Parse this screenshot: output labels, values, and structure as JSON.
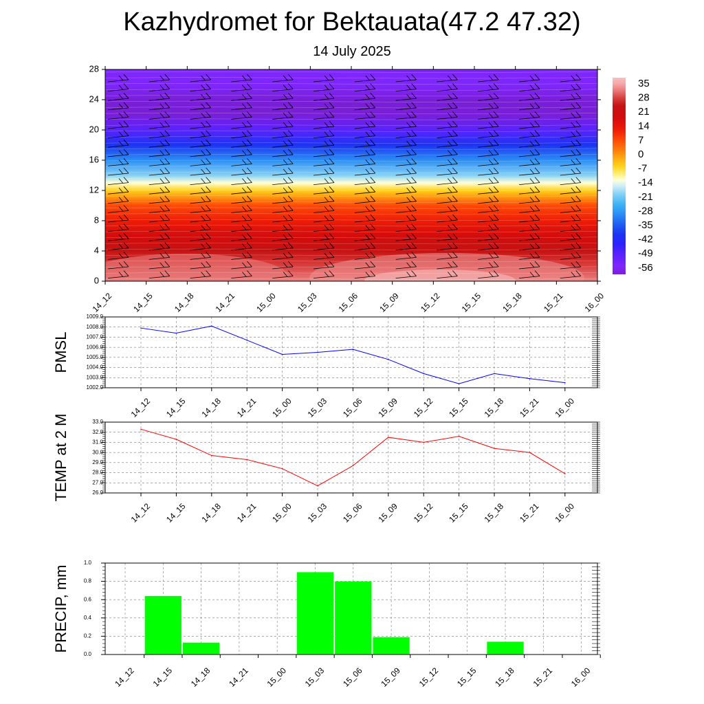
{
  "header": {
    "title": "Kazhydromet for Bektauata(47.2 47.32)",
    "subtitle": "14 July 2025"
  },
  "chart_data": [
    {
      "type": "heatmap",
      "xlabel": "",
      "ylabel": "",
      "x": [
        "14_12",
        "14_15",
        "14_18",
        "14_21",
        "15_00",
        "15_03",
        "15_06",
        "15_09",
        "15_12",
        "15_15",
        "15_18",
        "15_21",
        "16_00"
      ],
      "y_ticks": [
        0,
        4,
        8,
        12,
        16,
        20,
        24,
        28
      ],
      "ylim": [
        0,
        28
      ],
      "colorbar_labels": [
        "35",
        "28",
        "21",
        "14",
        "7",
        "0",
        "-7",
        "-14",
        "-21",
        "-28",
        "-35",
        "-42",
        "-49",
        "-56"
      ],
      "colorbar_range": [
        -60,
        38
      ],
      "vertical_temperature_profile": [
        {
          "y": 0,
          "value": 33
        },
        {
          "y": 2,
          "value": 30
        },
        {
          "y": 4,
          "value": 27
        },
        {
          "y": 6,
          "value": 22
        },
        {
          "y": 8,
          "value": 18
        },
        {
          "y": 10,
          "value": 8
        },
        {
          "y": 12,
          "value": -2
        },
        {
          "y": 13,
          "value": -10
        },
        {
          "y": 14,
          "value": -16
        },
        {
          "y": 16,
          "value": -28
        },
        {
          "y": 18,
          "value": -38
        },
        {
          "y": 20,
          "value": -48
        },
        {
          "y": 22,
          "value": -56
        },
        {
          "y": 24,
          "value": -58
        },
        {
          "y": 26,
          "value": -55
        },
        {
          "y": 28,
          "value": -52
        }
      ],
      "wind_barbs": "yes",
      "grid": false
    },
    {
      "type": "line",
      "ylabel": "PMSL",
      "xlabel": "",
      "categories": [
        "14_12",
        "14_15",
        "14_18",
        "14_21",
        "15_00",
        "15_03",
        "15_06",
        "15_09",
        "15_12",
        "15_15",
        "15_18",
        "15_21",
        "16_00"
      ],
      "values": [
        1007.9,
        1007.4,
        1008.1,
        1006.7,
        1005.3,
        1005.5,
        1005.8,
        1004.8,
        1003.4,
        1002.4,
        1003.4,
        1002.9,
        1002.5
      ],
      "y_ticks": [
        "1002.0",
        "1003.0",
        "1004.0",
        "1005.0",
        "1006.0",
        "1007.0",
        "1008.0",
        "1009.0"
      ],
      "ylim": [
        1002,
        1009
      ],
      "color": "#0000ff",
      "grid": true
    },
    {
      "type": "line",
      "ylabel": "TEMP at 2 M",
      "xlabel": "",
      "categories": [
        "14_12",
        "14_15",
        "14_18",
        "14_21",
        "15_00",
        "15_03",
        "15_06",
        "15_09",
        "15_12",
        "15_15",
        "15_18",
        "15_21",
        "16_00"
      ],
      "values": [
        32.3,
        31.3,
        29.7,
        29.3,
        28.4,
        26.7,
        28.7,
        31.5,
        31.0,
        31.6,
        30.4,
        30.0,
        27.9
      ],
      "y_ticks": [
        "26.0",
        "27.0",
        "28.0",
        "29.0",
        "30.0",
        "31.0",
        "32.0",
        "33.0"
      ],
      "ylim": [
        26,
        33
      ],
      "color": "#ff0000",
      "grid": true
    },
    {
      "type": "bar",
      "ylabel": "PRECIP, mm",
      "xlabel": "",
      "categories": [
        "14_12",
        "14_15",
        "14_18",
        "14_21",
        "15_00",
        "15_03",
        "15_06",
        "15_09",
        "15_12",
        "15_15",
        "15_18",
        "15_21",
        "16_00"
      ],
      "values": [
        0,
        0.64,
        0.13,
        0,
        0,
        0.9,
        0.8,
        0.19,
        0,
        0,
        0.14,
        0,
        0
      ],
      "y_ticks": [
        "0.0",
        "0.2",
        "0.4",
        "0.6",
        "0.8",
        "1.0"
      ],
      "ylim": [
        0,
        1.0
      ],
      "color": "#00ff00",
      "grid": true
    }
  ]
}
